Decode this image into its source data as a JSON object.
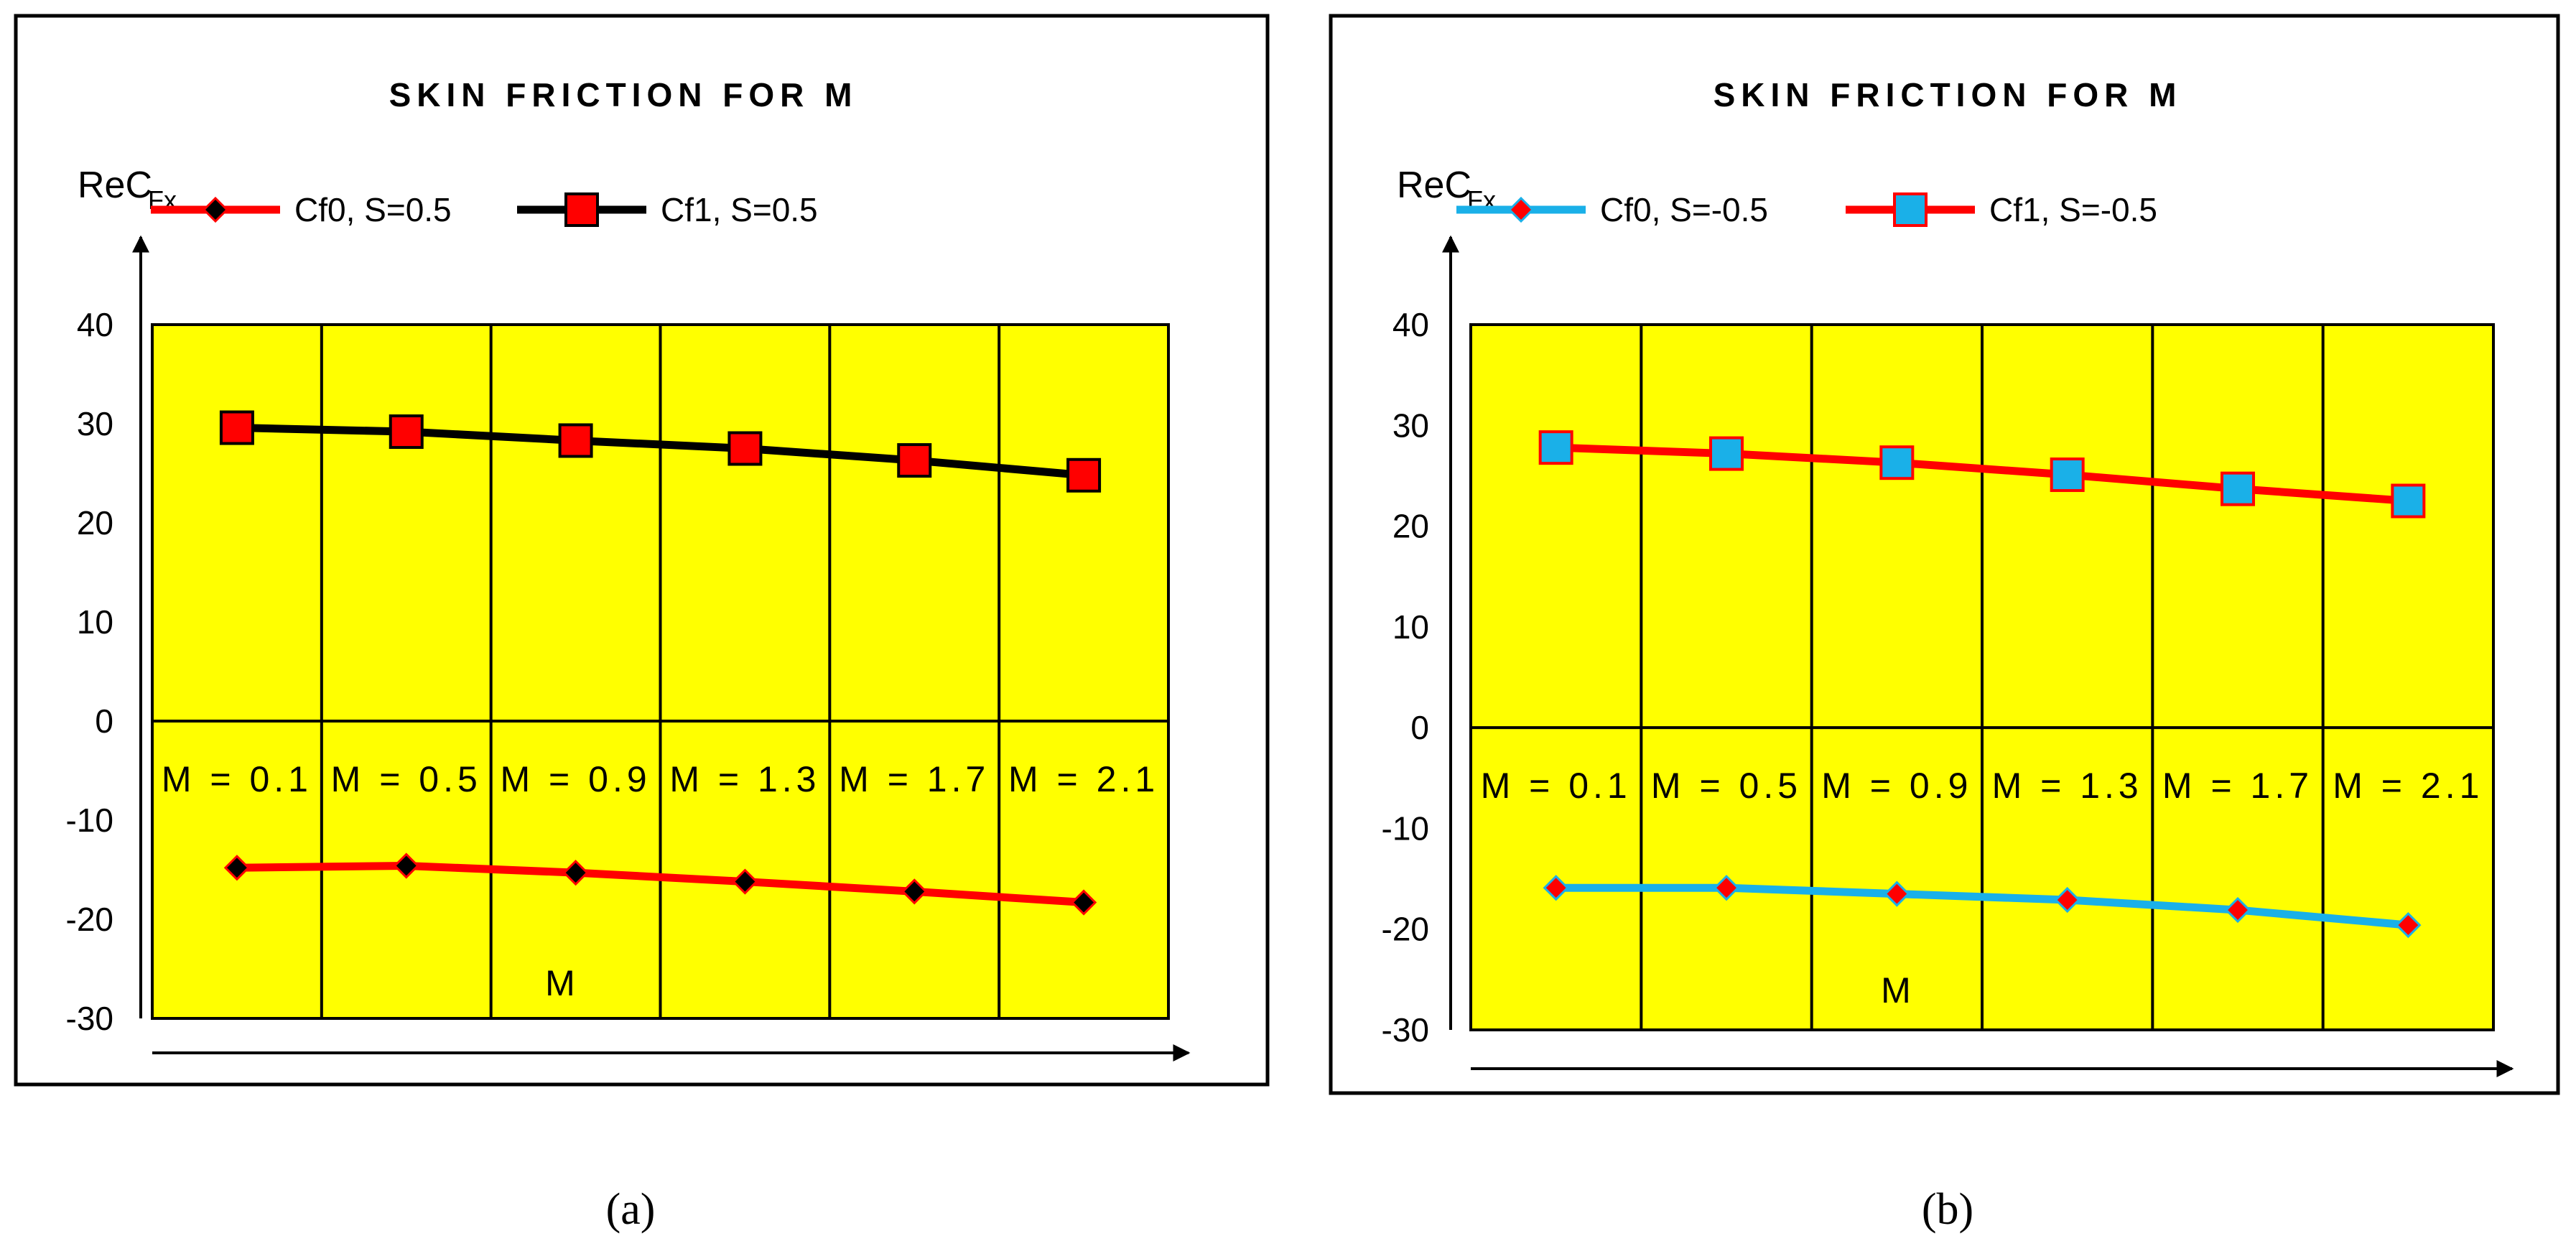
{
  "chart_data": [
    {
      "type": "line",
      "panel_label": "(a)",
      "title": "SKIN FRICTION FOR M",
      "ylabel": "ReC",
      "ylabel_sub": "Fx",
      "xlabel": "M",
      "categories": [
        "M = 0.1",
        "M = 0.5",
        "M = 0.9",
        "M = 1.3",
        "M = 1.7",
        "M = 2.1"
      ],
      "ylim": [
        -30,
        40
      ],
      "yticks": [
        "40",
        "30",
        "20",
        "10",
        "0",
        "-10",
        "-20",
        "-30"
      ],
      "legend_position": "top",
      "grid": true,
      "plot_color": "#ffff00",
      "series": [
        {
          "name": "Cf0, S=0.5",
          "values": [
            -14.8,
            -14.6,
            -15.3,
            -16.2,
            -17.2,
            -18.3
          ],
          "line_color": "#ff0000",
          "marker": "diamond",
          "marker_fill": "#000000"
        },
        {
          "name": "Cf1, S=0.5",
          "values": [
            29.6,
            29.2,
            28.3,
            27.5,
            26.3,
            24.8
          ],
          "line_color": "#000000",
          "marker": "square",
          "marker_fill": "#ff0000"
        }
      ]
    },
    {
      "type": "line",
      "panel_label": "(b)",
      "title": "SKIN FRICTION FOR M",
      "ylabel": "ReC",
      "ylabel_sub": "Fx",
      "xlabel": "M",
      "categories": [
        "M = 0.1",
        "M = 0.5",
        "M = 0.9",
        "M = 1.3",
        "M = 1.7",
        "M = 2.1"
      ],
      "ylim": [
        -30,
        40
      ],
      "yticks": [
        "40",
        "30",
        "20",
        "10",
        "0",
        "-10",
        "-20",
        "-30"
      ],
      "legend_position": "top",
      "grid": true,
      "plot_color": "#ffff00",
      "series": [
        {
          "name": "Cf0, S=-0.5",
          "values": [
            -15.9,
            -15.9,
            -16.5,
            -17.1,
            -18.1,
            -19.6
          ],
          "line_color": "#1ab0e8",
          "marker": "diamond",
          "marker_fill": "#ff0000"
        },
        {
          "name": "Cf1, S=-0.5",
          "values": [
            27.8,
            27.2,
            26.3,
            25.1,
            23.7,
            22.5
          ],
          "line_color": "#ff0000",
          "marker": "square",
          "marker_fill": "#1ab0e8"
        }
      ]
    }
  ]
}
